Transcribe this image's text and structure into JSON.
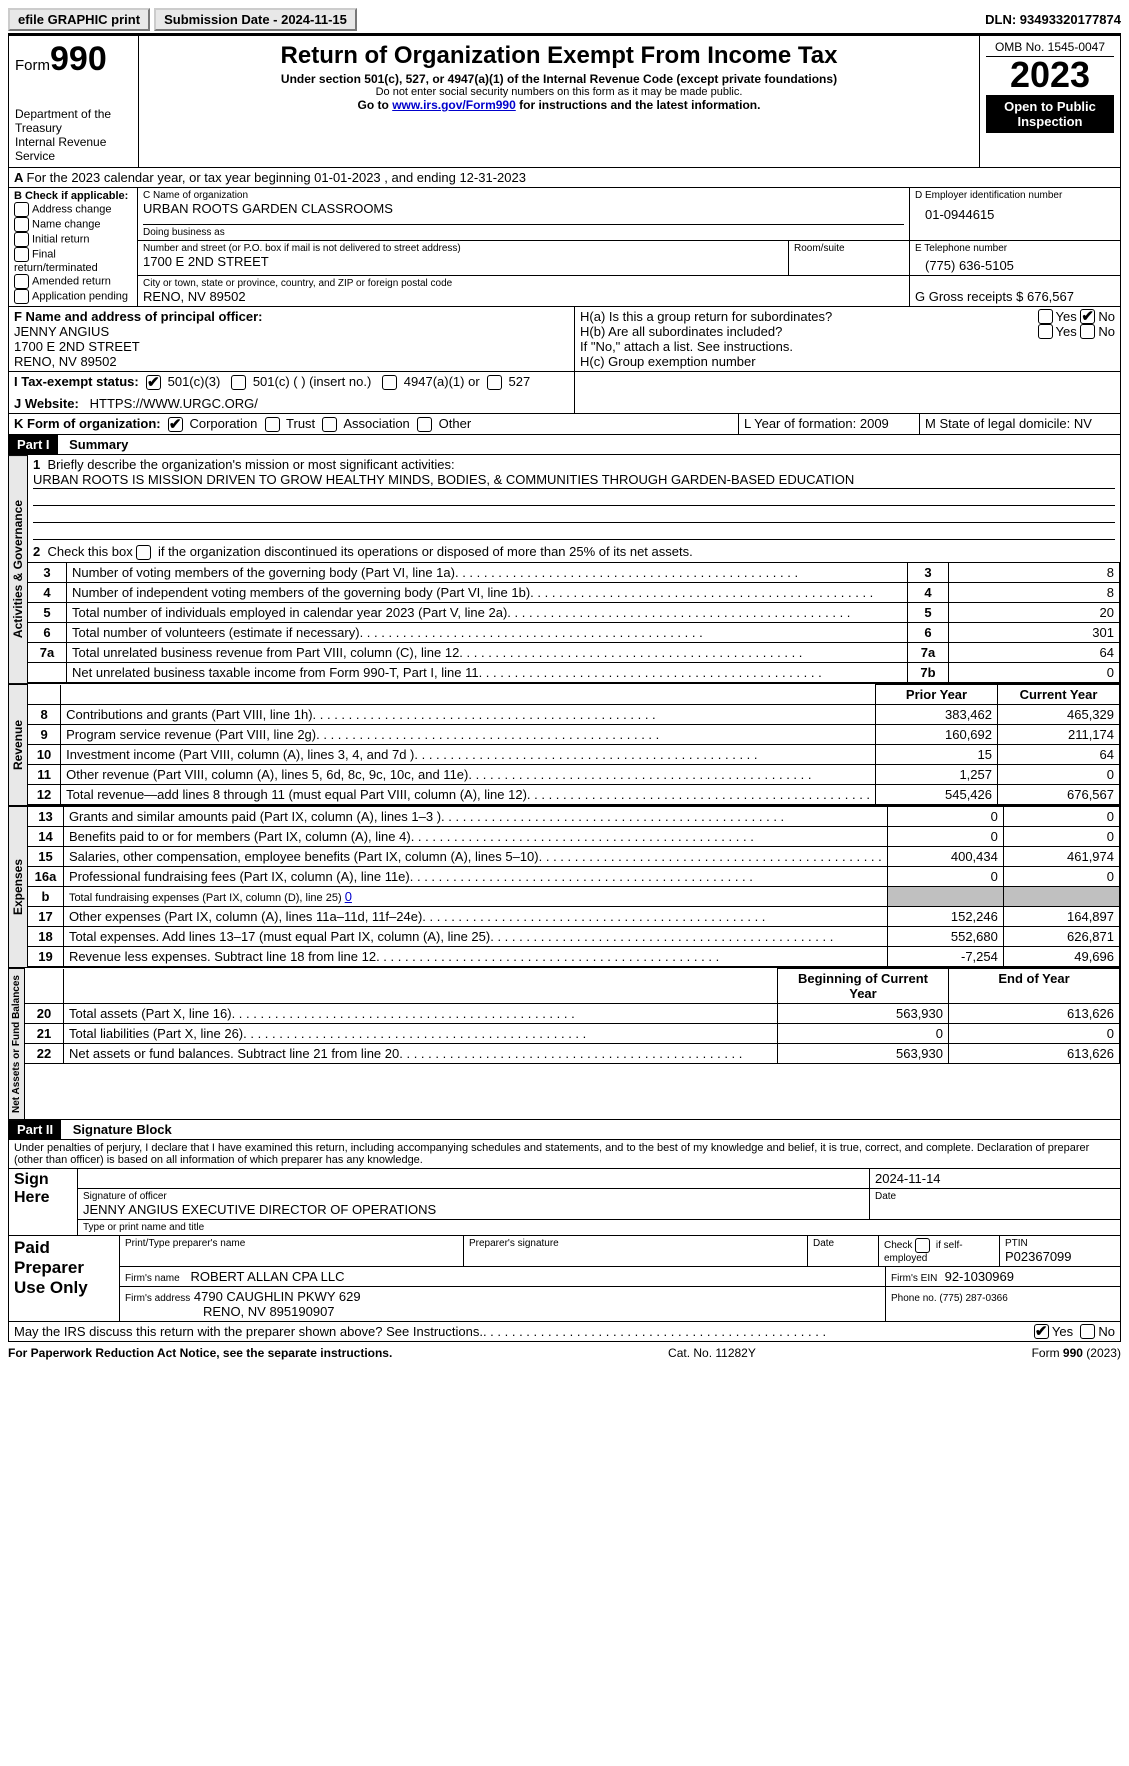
{
  "topbar": {
    "efile_btn": "efile GRAPHIC print",
    "submission_label": "Submission Date - 2024-11-15",
    "dln_label": "DLN: 93493320177874"
  },
  "header": {
    "form_label": "Form",
    "form_number": "990",
    "dept": "Department of the Treasury",
    "irs": "Internal Revenue Service",
    "title": "Return of Organization Exempt From Income Tax",
    "sub1": "Under section 501(c), 527, or 4947(a)(1) of the Internal Revenue Code (except private foundations)",
    "sub2": "Do not enter social security numbers on this form as it may be made public.",
    "sub3_pre": "Go to ",
    "sub3_link": "www.irs.gov/Form990",
    "sub3_post": " for instructions and the latest information.",
    "omb": "OMB No. 1545-0047",
    "year": "2023",
    "openpub": "Open to Public Inspection"
  },
  "lineA": "For the 2023 calendar year, or tax year beginning 01-01-2023    , and ending 12-31-2023",
  "boxB": {
    "label": "B Check if applicable:",
    "items": [
      "Address change",
      "Name change",
      "Initial return",
      "Final return/terminated",
      "Amended return",
      "Application pending"
    ]
  },
  "boxC": {
    "name_label": "C Name of organization",
    "name": "URBAN ROOTS GARDEN CLASSROOMS",
    "dba_label": "Doing business as",
    "dba": "",
    "street_label": "Number and street (or P.O. box if mail is not delivered to street address)",
    "street": "1700 E 2ND STREET",
    "room_label": "Room/suite",
    "city_label": "City or town, state or province, country, and ZIP or foreign postal code",
    "city": "RENO, NV  89502"
  },
  "boxD": {
    "label": "D Employer identification number",
    "value": "01-0944615"
  },
  "boxE": {
    "label": "E Telephone number",
    "value": "(775) 636-5105"
  },
  "boxG": {
    "label": "G Gross receipts $ 676,567"
  },
  "boxF": {
    "label": "F  Name and address of principal officer:",
    "name": "JENNY ANGIUS",
    "street": "1700 E 2ND STREET",
    "city": "RENO, NV  89502"
  },
  "boxH": {
    "ha_label": "H(a)  Is this a group return for subordinates?",
    "hb_label": "H(b)  Are all subordinates included?",
    "hb_note": "If \"No,\" attach a list. See instructions.",
    "hc_label": "H(c)  Group exemption number",
    "yes": "Yes",
    "no": "No"
  },
  "boxI": {
    "label": "I    Tax-exempt status:",
    "c3": "501(c)(3)",
    "c_other": "501(c) (   ) (insert no.)",
    "a4947": "4947(a)(1) or",
    "s527": "527"
  },
  "boxJ": {
    "label": "J   Website:",
    "url": "HTTPS://WWW.URGC.ORG/"
  },
  "boxK": {
    "label": "K Form of organization:",
    "corp": "Corporation",
    "trust": "Trust",
    "assoc": "Association",
    "other": "Other"
  },
  "boxL": {
    "label": "L Year of formation: 2009"
  },
  "boxM": {
    "label": "M State of legal domicile: NV"
  },
  "part1": {
    "bar": "Part I",
    "title": "Summary"
  },
  "summary": {
    "line1_label": "Briefly describe the organization's mission or most significant activities:",
    "line1_text": "URBAN ROOTS IS MISSION DRIVEN TO GROW HEALTHY MINDS, BODIES, & COMMUNITIES THROUGH GARDEN-BASED EDUCATION",
    "line2": "Check this box        if the organization discontinued its operations or disposed of more than 25% of its net assets.",
    "rows_gov": [
      {
        "n": "3",
        "t": "Number of voting members of the governing body (Part VI, line 1a)",
        "b": "3",
        "v": "8"
      },
      {
        "n": "4",
        "t": "Number of independent voting members of the governing body (Part VI, line 1b)",
        "b": "4",
        "v": "8"
      },
      {
        "n": "5",
        "t": "Total number of individuals employed in calendar year 2023 (Part V, line 2a)",
        "b": "5",
        "v": "20"
      },
      {
        "n": "6",
        "t": "Total number of volunteers (estimate if necessary)",
        "b": "6",
        "v": "301"
      },
      {
        "n": "7a",
        "t": "Total unrelated business revenue from Part VIII, column (C), line 12",
        "b": "7a",
        "v": "64"
      },
      {
        "n": "",
        "t": "Net unrelated business taxable income from Form 990-T, Part I, line 11",
        "b": "7b",
        "v": "0"
      }
    ],
    "col_prior": "Prior Year",
    "col_current": "Current Year",
    "rows_rev": [
      {
        "n": "8",
        "t": "Contributions and grants (Part VIII, line 1h)",
        "p": "383,462",
        "c": "465,329"
      },
      {
        "n": "9",
        "t": "Program service revenue (Part VIII, line 2g)",
        "p": "160,692",
        "c": "211,174"
      },
      {
        "n": "10",
        "t": "Investment income (Part VIII, column (A), lines 3, 4, and 7d )",
        "p": "15",
        "c": "64"
      },
      {
        "n": "11",
        "t": "Other revenue (Part VIII, column (A), lines 5, 6d, 8c, 9c, 10c, and 11e)",
        "p": "1,257",
        "c": "0"
      },
      {
        "n": "12",
        "t": "Total revenue—add lines 8 through 11 (must equal Part VIII, column (A), line 12)",
        "p": "545,426",
        "c": "676,567"
      }
    ],
    "rows_exp": [
      {
        "n": "13",
        "t": "Grants and similar amounts paid (Part IX, column (A), lines 1–3 )",
        "p": "0",
        "c": "0"
      },
      {
        "n": "14",
        "t": "Benefits paid to or for members (Part IX, column (A), line 4)",
        "p": "0",
        "c": "0"
      },
      {
        "n": "15",
        "t": "Salaries, other compensation, employee benefits (Part IX, column (A), lines 5–10)",
        "p": "400,434",
        "c": "461,974"
      },
      {
        "n": "16a",
        "t": "Professional fundraising fees (Part IX, column (A), line 11e)",
        "p": "0",
        "c": "0"
      }
    ],
    "line16b_pre": "Total fundraising expenses (Part IX, column (D), line 25) ",
    "line16b_val": "0",
    "rows_exp2": [
      {
        "n": "17",
        "t": "Other expenses (Part IX, column (A), lines 11a–11d, 11f–24e)",
        "p": "152,246",
        "c": "164,897"
      },
      {
        "n": "18",
        "t": "Total expenses. Add lines 13–17 (must equal Part IX, column (A), line 25)",
        "p": "552,680",
        "c": "626,871"
      },
      {
        "n": "19",
        "t": "Revenue less expenses. Subtract line 18 from line 12",
        "p": "-7,254",
        "c": "49,696"
      }
    ],
    "col_beg": "Beginning of Current Year",
    "col_end": "End of Year",
    "rows_na": [
      {
        "n": "20",
        "t": "Total assets (Part X, line 16)",
        "p": "563,930",
        "c": "613,626"
      },
      {
        "n": "21",
        "t": "Total liabilities (Part X, line 26)",
        "p": "0",
        "c": "0"
      },
      {
        "n": "22",
        "t": "Net assets or fund balances. Subtract line 21 from line 20",
        "p": "563,930",
        "c": "613,626"
      }
    ]
  },
  "vtabs": {
    "gov": "Activities & Governance",
    "rev": "Revenue",
    "exp": "Expenses",
    "na": "Net Assets or Fund Balances"
  },
  "part2": {
    "bar": "Part II",
    "title": "Signature Block"
  },
  "perjury": "Under penalties of perjury, I declare that I have examined this return, including accompanying schedules and statements, and to the best of my knowledge and belief, it is true, correct, and complete. Declaration of preparer (other than officer) is based on all information of which preparer has any knowledge.",
  "sign": {
    "here": "Sign Here",
    "date": "2024-11-14",
    "sig_label": "Signature of officer",
    "officer": "JENNY ANGIUS  EXECUTIVE DIRECTOR OF OPERATIONS",
    "type_label": "Type or print name and title",
    "date_label": "Date"
  },
  "preparer": {
    "label": "Paid Preparer Use Only",
    "print_label": "Print/Type preparer's name",
    "sig_label": "Preparer's signature",
    "date_label": "Date",
    "self_label": "Check         if self-employed",
    "ptin_label": "PTIN",
    "ptin": "P02367099",
    "firm_name_label": "Firm's name",
    "firm_name": "ROBERT ALLAN CPA LLC",
    "firm_ein_label": "Firm's EIN",
    "firm_ein": "92-1030969",
    "firm_addr_label": "Firm's address",
    "firm_addr1": "4790 CAUGHLIN PKWY 629",
    "firm_addr2": "RENO, NV  895190907",
    "phone_label": "Phone no. (775) 287-0366"
  },
  "discuss": {
    "text": "May the IRS discuss this return with the preparer shown above? See Instructions.",
    "yes": "Yes",
    "no": "No"
  },
  "footer": {
    "left": "For Paperwork Reduction Act Notice, see the separate instructions.",
    "mid": "Cat. No. 11282Y",
    "right_pre": "Form ",
    "right_form": "990",
    "right_post": " (2023)"
  }
}
